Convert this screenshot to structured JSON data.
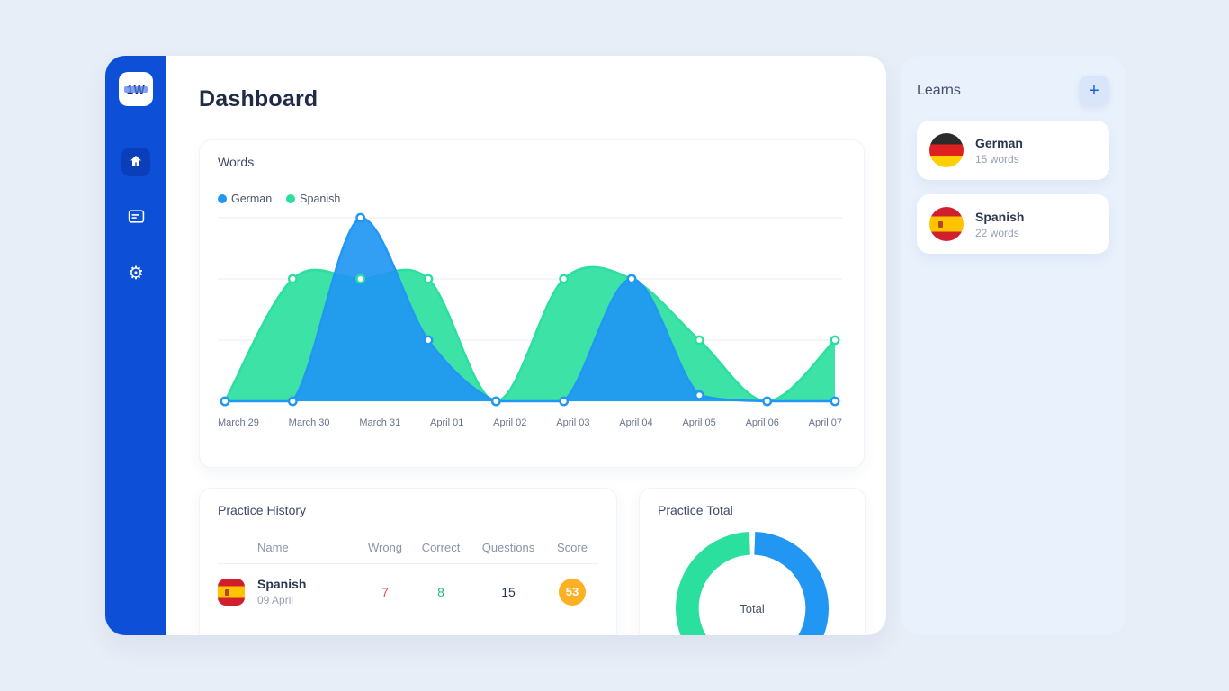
{
  "header": {
    "title": "Dashboard"
  },
  "sidebar": {
    "logo": "1W"
  },
  "icons": {
    "settings": "⚙",
    "add": "+"
  },
  "words_card": {
    "title": "Words"
  },
  "practice_history": {
    "title": "Practice History",
    "columns": {
      "name": "Name",
      "wrong": "Wrong",
      "correct": "Correct",
      "questions": "Questions",
      "score": "Score"
    },
    "rows": [
      {
        "name": "Spanish",
        "date": "09 April",
        "wrong": "7",
        "correct": "8",
        "questions": "15",
        "score": "53"
      }
    ]
  },
  "practice_total": {
    "title": "Practice Total",
    "center_label": "Total"
  },
  "learns": {
    "title": "Learns",
    "items": [
      {
        "language": "German",
        "count": "15 words"
      },
      {
        "language": "Spanish",
        "count": "22 words"
      }
    ]
  },
  "colors": {
    "accent_blue": "#2196f3",
    "accent_green": "#2bdf9e",
    "badge_orange": "#fcb024",
    "wrong_red": "#ef5350",
    "correct_green": "#27b97c"
  },
  "chart_data": [
    {
      "type": "area",
      "title": "Words",
      "x": [
        "March 29",
        "March 30",
        "March 31",
        "April 01",
        "April 02",
        "April 03",
        "April 04",
        "April 05",
        "April 06",
        "April 07"
      ],
      "series": [
        {
          "name": "German",
          "color": "#2196f3",
          "values": [
            0,
            0,
            15,
            5,
            0,
            0,
            10,
            0.5,
            0,
            0
          ]
        },
        {
          "name": "Spanish",
          "color": "#2bdf9e",
          "values": [
            0,
            10,
            10,
            10,
            0,
            10,
            10,
            5,
            0,
            5
          ]
        }
      ],
      "ylim": [
        0,
        15
      ],
      "gridlines": [
        5,
        10,
        15
      ],
      "grid": "horizontal",
      "legend_position": "top-left"
    },
    {
      "type": "donut",
      "title": "Practice Total",
      "center_label": "Total",
      "segments": [
        {
          "name": "German",
          "color": "#2196f3",
          "value": 42
        },
        {
          "name": "Spanish",
          "color": "#2bdf9e",
          "value": 58
        }
      ]
    }
  ]
}
